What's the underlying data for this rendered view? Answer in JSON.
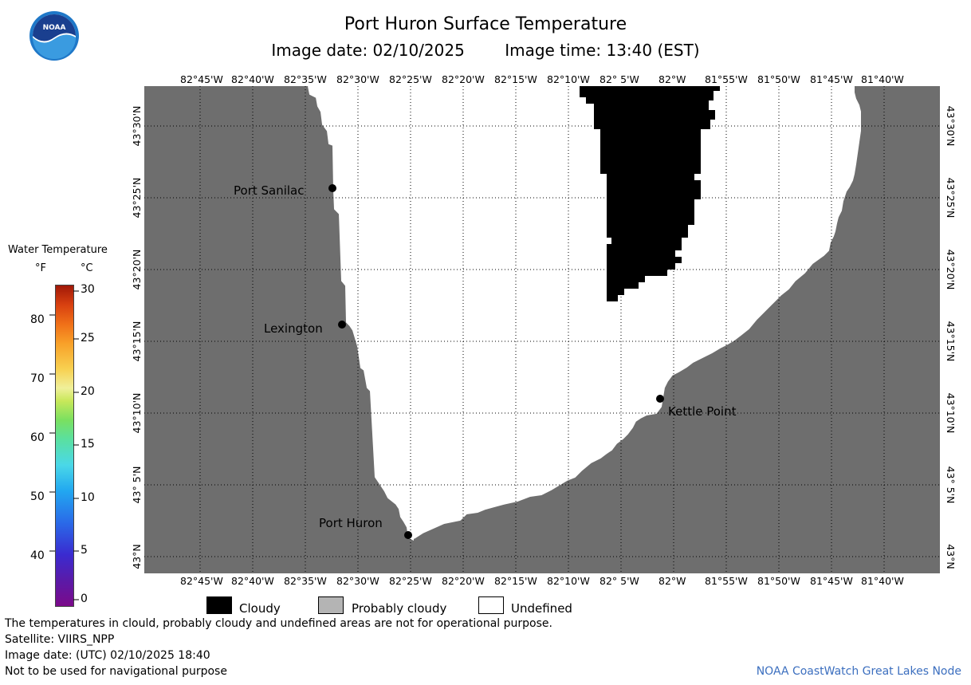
{
  "title": "Port Huron Surface Temperature",
  "image_date_label": "Image date: 02/10/2025",
  "image_time_label": "Image time: 13:40 (EST)",
  "lon_ticks": [
    "82°45'W",
    "82°40'W",
    "82°35'W",
    "82°30'W",
    "82°25'W",
    "82°20'W",
    "82°15'W",
    "82°10'W",
    "82° 5'W",
    "82°W",
    "81°55'W",
    "81°50'W",
    "81°45'W",
    "81°40'W"
  ],
  "lat_ticks": [
    "43°30'N",
    "43°25'N",
    "43°20'N",
    "43°15'N",
    "43°10'N",
    "43° 5'N",
    "43°N"
  ],
  "cities": [
    {
      "name": "Port Sanilac"
    },
    {
      "name": "Lexington"
    },
    {
      "name": "Kettle Point"
    },
    {
      "name": "Port Huron"
    }
  ],
  "colorbar": {
    "title": "Water Temperature",
    "unit_f": "°F",
    "unit_c": "°C",
    "f_labels": [
      "80",
      "70",
      "60",
      "50",
      "40"
    ],
    "c_labels": [
      "30",
      "25",
      "20",
      "15",
      "10",
      "5",
      "0"
    ]
  },
  "legend": {
    "cloudy": "Cloudy",
    "probably_cloudy": "Probably cloudy",
    "undefined": "Undefined"
  },
  "footer": {
    "line1": "The temperatures in clould, probably cloudy and undefined areas are not for operational purpose.",
    "line2": "Satellite: VIIRS_NPP",
    "line3": "Image date: (UTC) 02/10/2025  18:40",
    "line4": "Not to be used for navigational purpose",
    "credit": "NOAA CoastWatch Great Lakes Node"
  },
  "colors": {
    "land": "#6e6e6e",
    "water_undefined": "#ffffff",
    "cloudy": "#000000",
    "probably_cloudy": "#b4b4b4",
    "noaa_blue": "#1f78c8"
  }
}
